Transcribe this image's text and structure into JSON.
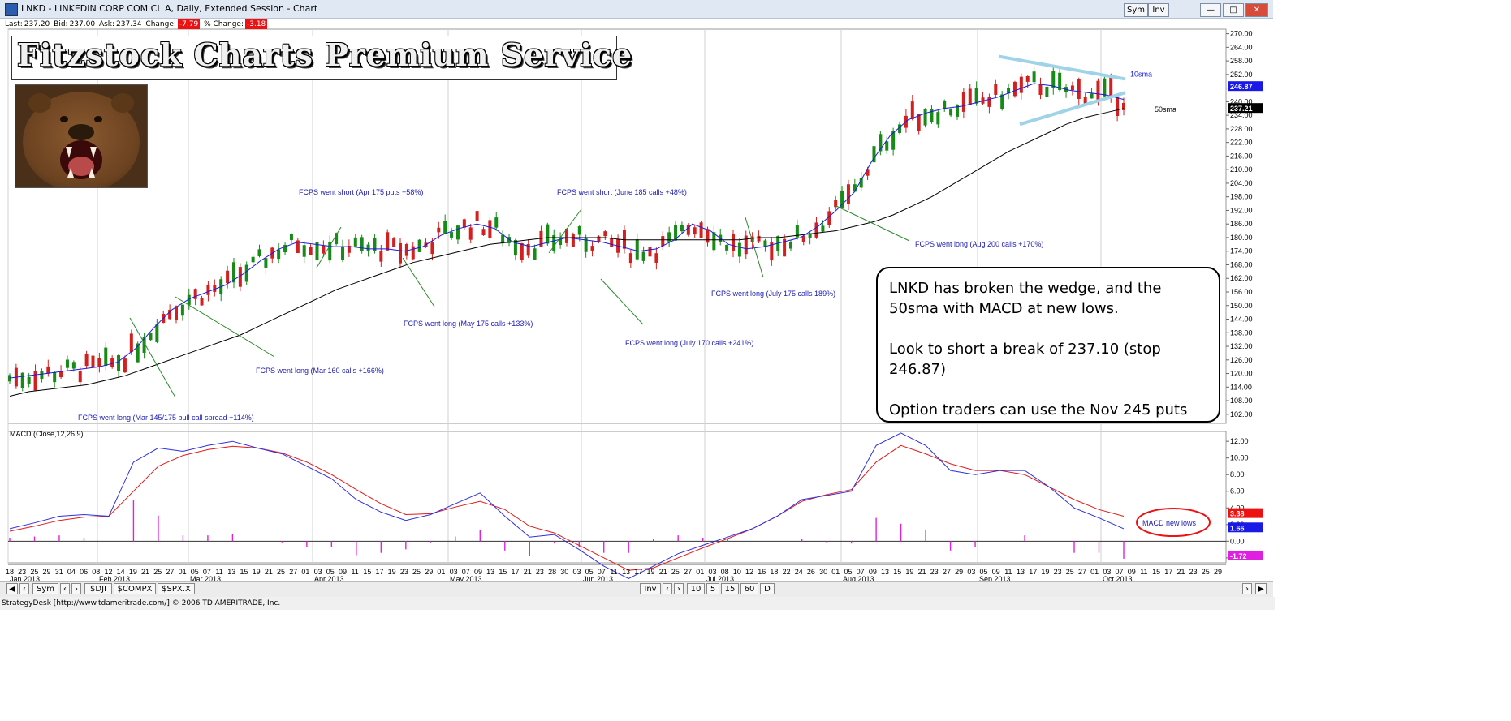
{
  "window": {
    "title": "LNKD - LINKEDIN CORP COM CL A, Daily, Extended Session - Chart",
    "sym_button": "Sym",
    "inv_button": "Inv"
  },
  "quote": {
    "last_label": "Last:",
    "last": "237.20",
    "bid_label": "Bid:",
    "bid": "237.00",
    "ask_label": "Ask:",
    "ask": "237.34",
    "change_label": "Change:",
    "change": "-7.79",
    "pct_label": "% Change:",
    "pct": "-3.18"
  },
  "banner": {
    "text": "Fitzstock Charts Premium Service"
  },
  "note": {
    "lines": [
      "LNKD has broken the wedge, and the 50sma with MACD at new lows.",
      "Look to short a break of 237.10 (stop 246.87)",
      "Option traders can use the Nov 245 puts"
    ]
  },
  "colors": {
    "up": "#178a17",
    "down": "#d41f1f",
    "sma10": "#1a1ae6",
    "sma50": "#000000",
    "macd": "#2f2fe0",
    "signal": "#e21a1a",
    "hist": "#e020e0",
    "wedge": "#9fd3e8",
    "annotation": "#1a1ab4"
  },
  "chart_data": [
    {
      "type": "line",
      "title": "",
      "series": [
        {
          "name": "10sma",
          "values": [
            118,
            119,
            120,
            121,
            122,
            123,
            125,
            131,
            140,
            148,
            153,
            156,
            159,
            164,
            170,
            175,
            178,
            177,
            176,
            176,
            175,
            175,
            174,
            176,
            181,
            184,
            186,
            184,
            178,
            176,
            178,
            180,
            179,
            178,
            176,
            174,
            175,
            179,
            186,
            183,
            177,
            175,
            176,
            178,
            180,
            185,
            192,
            200,
            214,
            225,
            232,
            235,
            237,
            238,
            240,
            242,
            245,
            248,
            247,
            245,
            244,
            243,
            241
          ]
        },
        {
          "name": "50sma",
          "values": [
            110,
            112,
            113,
            114,
            115,
            117,
            119,
            122,
            125,
            128,
            131,
            134,
            137,
            141,
            145,
            149,
            153,
            157,
            160,
            163,
            166,
            169,
            171,
            173,
            175,
            177,
            178,
            179,
            180,
            180,
            180,
            180,
            179,
            179,
            179,
            179,
            179,
            179,
            179,
            180,
            180,
            181,
            182,
            183,
            185,
            187,
            190,
            194,
            198,
            203,
            208,
            213,
            218,
            222,
            226,
            230,
            233,
            235,
            237
          ]
        }
      ],
      "ylim": [
        98,
        272
      ],
      "yticks": [
        "270.00",
        "264.00",
        "258.00",
        "252.00",
        "246.00",
        "240.00",
        "234.00",
        "228.00",
        "222.00",
        "216.00",
        "210.00",
        "204.00",
        "198.00",
        "192.00",
        "186.00",
        "180.00",
        "174.00",
        "168.00",
        "162.00",
        "156.00",
        "150.00",
        "144.00",
        "138.00",
        "132.00",
        "126.00",
        "120.00",
        "114.00",
        "108.00",
        "102.00"
      ],
      "price_tags": [
        "246.87",
        "237.21"
      ],
      "legend_labels": [
        "10sma",
        "50sma"
      ]
    },
    {
      "type": "line",
      "title": "MACD (Close,12,26,9)",
      "series": [
        {
          "name": "MACD",
          "values": [
            1.5,
            2.2,
            3.0,
            3.2,
            3.0,
            9.5,
            11.2,
            10.8,
            11.5,
            12.0,
            11.2,
            10.5,
            9.0,
            7.5,
            5.0,
            3.5,
            2.5,
            3.2,
            4.5,
            5.8,
            3.0,
            0.5,
            0.8,
            -1.0,
            -3.0,
            -4.5,
            -3.0,
            -1.5,
            -0.5,
            0.5,
            1.5,
            3.0,
            5.0,
            5.5,
            6.0,
            11.5,
            13.0,
            11.5,
            8.5,
            8.0,
            8.5,
            8.5,
            6.5,
            4.0,
            2.8,
            1.5
          ]
        },
        {
          "name": "Signal",
          "values": [
            1.2,
            1.8,
            2.5,
            2.9,
            3.0,
            6.0,
            9.0,
            10.3,
            11.0,
            11.4,
            11.2,
            10.6,
            9.5,
            8.0,
            6.2,
            4.5,
            3.2,
            3.3,
            4.1,
            4.8,
            3.8,
            1.8,
            1.0,
            -0.5,
            -2.0,
            -3.5,
            -3.2,
            -2.0,
            -0.8,
            0.3,
            1.5,
            3.0,
            4.8,
            5.6,
            6.2,
            9.5,
            11.5,
            10.5,
            9.3,
            8.5,
            8.5,
            8.0,
            6.5,
            5.0,
            3.8,
            3.0
          ]
        }
      ],
      "ylim": [
        -2.6,
        12.6
      ],
      "yticks": [
        "12.00",
        "10.00",
        "8.00",
        "6.00",
        "4.00",
        "2.00",
        "0.00",
        "-2.00"
      ],
      "price_tags": [
        "3.38",
        "1.66",
        "-1.72"
      ]
    }
  ],
  "annotations": [
    {
      "text": "FCPS went long (Mar 145/175 bull call spread +114%)"
    },
    {
      "text": "FCPS went long (Mar 160 calls +166%)"
    },
    {
      "text": "FCPS went short (Apr 175 puts +58%)"
    },
    {
      "text": "FCPS went long (May 175 calls +133%)"
    },
    {
      "text": "FCPS went short (June 185 calls +48%)"
    },
    {
      "text": "FCPS went long (July 170 calls +241%)"
    },
    {
      "text": "FCPS went long (July 175 calls 189%)"
    },
    {
      "text": "FCPS went long (Aug 200 calls +170%)"
    },
    {
      "text": "MACD new lows"
    }
  ],
  "xaxis": {
    "day_labels": [
      "18",
      "23",
      "25",
      "29",
      "31",
      "04",
      "06",
      "08",
      "12",
      "14",
      "19",
      "21",
      "25",
      "27",
      "01",
      "05",
      "07",
      "11",
      "13",
      "15",
      "19",
      "21",
      "25",
      "27",
      "01",
      "03",
      "05",
      "09",
      "11",
      "15",
      "17",
      "19",
      "23",
      "25",
      "29",
      "01",
      "03",
      "07",
      "09",
      "13",
      "15",
      "17",
      "21",
      "23",
      "28",
      "30",
      "03",
      "05",
      "07",
      "11",
      "13",
      "17",
      "19",
      "21",
      "25",
      "27",
      "01",
      "03",
      "08",
      "10",
      "12",
      "16",
      "18",
      "22",
      "24",
      "26",
      "30",
      "01",
      "05",
      "07",
      "09",
      "13",
      "15",
      "19",
      "21",
      "23",
      "27",
      "29",
      "03",
      "05",
      "09",
      "11",
      "13",
      "17",
      "19",
      "23",
      "25",
      "27",
      "01",
      "03",
      "07",
      "09",
      "11",
      "15",
      "17",
      "21",
      "23",
      "25",
      "29"
    ],
    "month_labels": [
      "Jan 2013",
      "Feb 2013",
      "Mar 2013",
      "Apr 2013",
      "May 2013",
      "Jun 2013",
      "Jul 2013",
      "Aug 2013",
      "Sep 2013",
      "Oct 2013"
    ]
  },
  "nav": {
    "sym": "Sym",
    "dji": "$DJI",
    "compx": "$COMPX",
    "spx": "$SPX.X",
    "inv": "Inv",
    "z10": "10",
    "z5": "5",
    "z15": "15",
    "z60": "60",
    "zd": "D"
  },
  "status": "StrategyDesk [http://www.tdameritrade.com/] © 2006 TD AMERITRADE, Inc."
}
